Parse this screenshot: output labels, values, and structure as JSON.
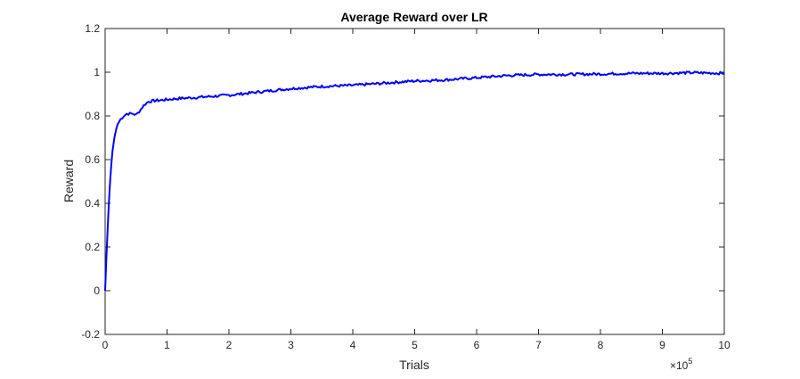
{
  "chart_data": {
    "type": "line",
    "title": "Average Reward over LR",
    "xlabel": "Trials",
    "ylabel": "Reward",
    "xlim": [
      0,
      1000000
    ],
    "ylim": [
      -0.2,
      1.2
    ],
    "x_exponent_label": "×10",
    "x_exponent": "5",
    "x_ticks": [
      0,
      1,
      2,
      3,
      4,
      5,
      6,
      7,
      8,
      9,
      10
    ],
    "y_ticks": [
      -0.2,
      0,
      0.2,
      0.4,
      0.6,
      0.8,
      1,
      1.2
    ],
    "grid": false,
    "line_color": "#0000ff",
    "series": [
      {
        "x": [
          0,
          2000,
          4000,
          6000,
          8000,
          10000,
          12000,
          15000,
          18000,
          20000,
          25000,
          30000,
          35000,
          40000,
          45000,
          50000,
          55000,
          60000,
          65000,
          70000,
          80000,
          90000,
          100000,
          120000,
          150000,
          200000,
          250000,
          300000,
          350000,
          400000,
          450000,
          500000,
          550000,
          600000,
          650000,
          700000,
          750000,
          800000,
          850000,
          900000,
          950000,
          1000000
        ],
        "y": [
          0.0,
          0.15,
          0.28,
          0.4,
          0.5,
          0.58,
          0.64,
          0.7,
          0.74,
          0.76,
          0.785,
          0.8,
          0.81,
          0.81,
          0.81,
          0.805,
          0.82,
          0.84,
          0.855,
          0.865,
          0.87,
          0.872,
          0.875,
          0.88,
          0.885,
          0.895,
          0.91,
          0.925,
          0.935,
          0.94,
          0.95,
          0.96,
          0.965,
          0.975,
          0.985,
          0.99,
          0.99,
          0.992,
          0.995,
          0.995,
          0.998,
          0.995
        ]
      }
    ]
  }
}
